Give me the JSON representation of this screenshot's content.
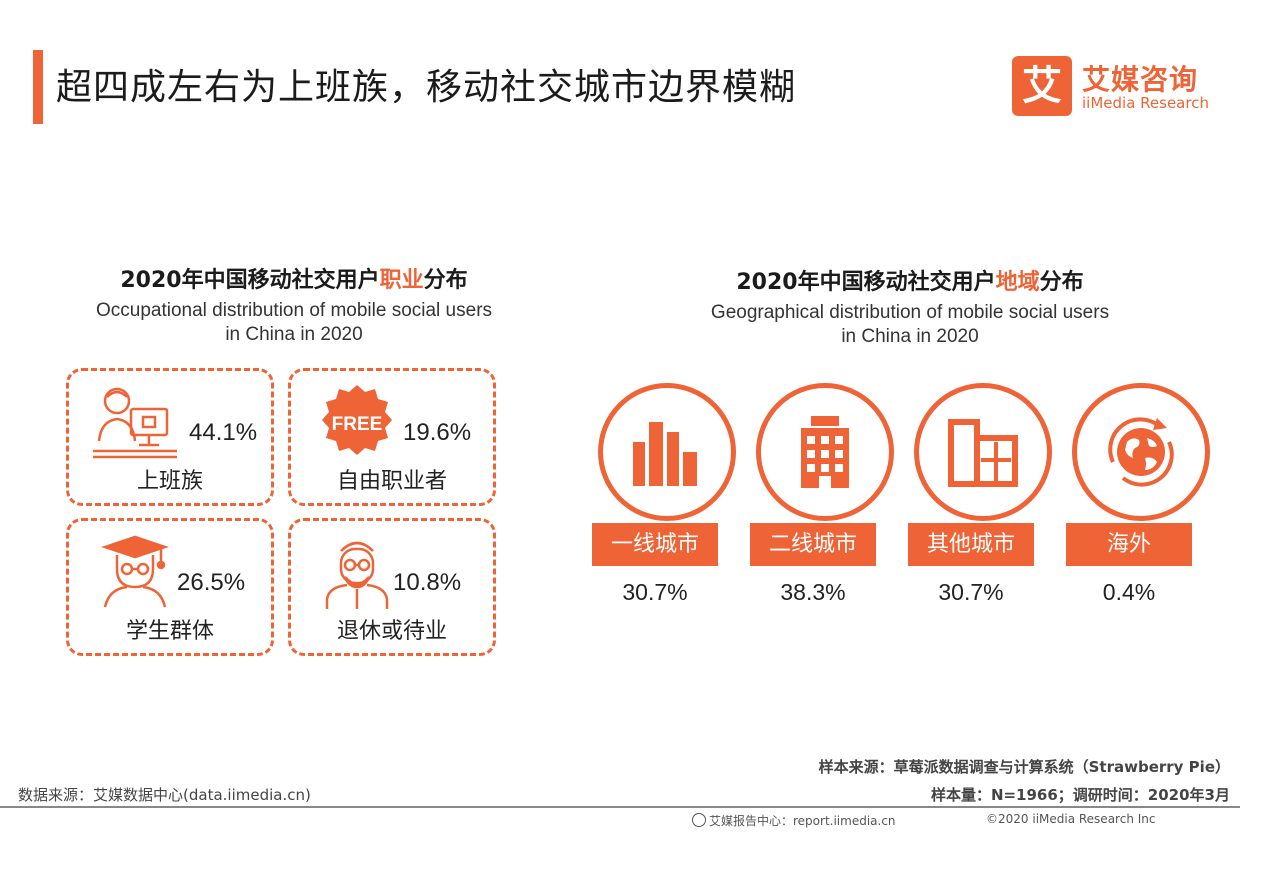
{
  "header": {
    "title": "超四成左右为上班族，移动社交城市边界模糊",
    "logo_mark": "艾",
    "logo_cn": "艾媒咨询",
    "logo_en": "iiMedia Research"
  },
  "occupation": {
    "title_pre": "2020年中国移动社交用户",
    "title_hl": "职业",
    "title_post": "分布",
    "subtitle_line1": "Occupational distribution of mobile social users",
    "subtitle_line2": "in China in 2020",
    "free_badge": "FREE",
    "items": [
      {
        "label": "上班族",
        "value": "44.1%",
        "icon": "office-worker-icon"
      },
      {
        "label": "自由职业者",
        "value": "19.6%",
        "icon": "free-badge-icon"
      },
      {
        "label": "学生群体",
        "value": "26.5%",
        "icon": "graduate-student-icon"
      },
      {
        "label": "退休或待业",
        "value": "10.8%",
        "icon": "elderly-person-icon"
      }
    ]
  },
  "geography": {
    "title_pre": "2020年中国移动社交用户",
    "title_hl": "地域",
    "title_post": "分布",
    "subtitle_line1": "Geographical distribution of mobile social users",
    "subtitle_line2": "in China in 2020",
    "items": [
      {
        "label": "一线城市",
        "value": "30.7%",
        "icon": "skyline-icon"
      },
      {
        "label": "二线城市",
        "value": "38.3%",
        "icon": "building-icon"
      },
      {
        "label": "其他城市",
        "value": "30.7%",
        "icon": "low-building-icon"
      },
      {
        "label": "海外",
        "value": "0.4%",
        "icon": "globe-icon"
      }
    ]
  },
  "chart_data": [
    {
      "type": "table",
      "title": "2020年中国移动社交用户职业分布",
      "categories": [
        "上班族",
        "自由职业者",
        "学生群体",
        "退休或待业"
      ],
      "values": [
        44.1,
        19.6,
        26.5,
        10.8
      ]
    },
    {
      "type": "table",
      "title": "2020年中国移动社交用户地域分布",
      "categories": [
        "一线城市",
        "二线城市",
        "其他城市",
        "海外"
      ],
      "values": [
        30.7,
        38.3,
        30.7,
        0.4
      ]
    }
  ],
  "footer": {
    "data_source": "数据来源：艾媒数据中心(data.iimedia.cn)",
    "sample_source": "样本来源：草莓派数据调查与计算系统（Strawberry Pie）",
    "sample_size": "样本量：N=1966；调研时间：2020年3月",
    "report_center": "艾媒报告中心：report.iimedia.cn",
    "copyright": "©2020 iiMedia Research Inc"
  },
  "colors": {
    "accent": "#ee6436",
    "text": "#222222"
  }
}
